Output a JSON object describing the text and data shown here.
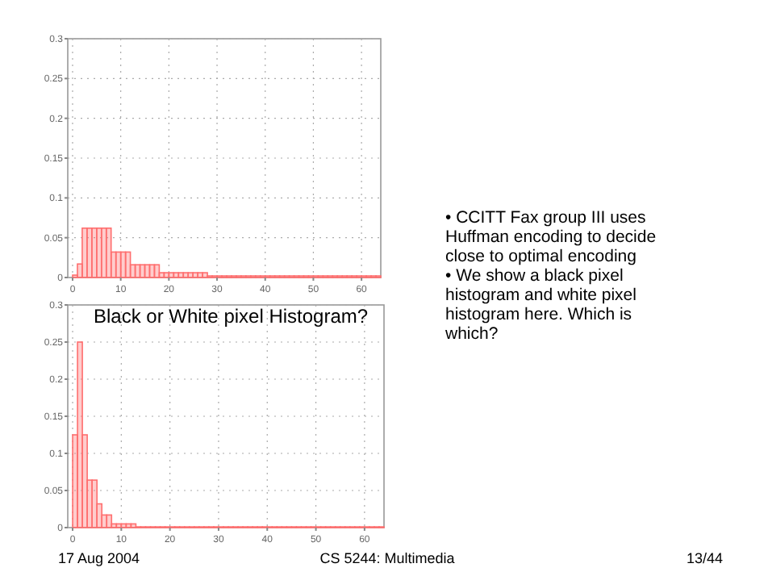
{
  "chart_data": [
    {
      "type": "histogram",
      "bins": [
        0,
        1,
        2,
        3,
        4,
        5,
        6,
        7,
        8,
        9,
        10,
        11,
        12,
        13,
        14,
        15,
        16,
        17,
        18,
        19,
        20,
        21,
        22,
        23,
        24,
        25,
        26,
        27,
        28,
        29,
        30,
        31,
        32,
        33,
        34,
        35,
        36,
        37,
        38,
        39,
        40,
        41,
        42,
        43,
        44,
        45,
        46,
        47,
        48,
        49,
        50,
        51,
        52,
        53,
        54,
        55,
        56,
        57,
        58,
        59,
        60,
        61,
        62,
        63,
        64
      ],
      "values": [
        0.003,
        0.017,
        0.062,
        0.062,
        0.062,
        0.062,
        0.062,
        0.062,
        0.032,
        0.032,
        0.032,
        0.032,
        0.016,
        0.016,
        0.016,
        0.016,
        0.016,
        0.016,
        0.006,
        0.006,
        0.006,
        0.006,
        0.006,
        0.006,
        0.006,
        0.006,
        0.006,
        0.006,
        0.002,
        0.002,
        0.002,
        0.002,
        0.002,
        0.002,
        0.002,
        0.002,
        0.002,
        0.002,
        0.002,
        0.002,
        0.002,
        0.002,
        0.002,
        0.002,
        0.002,
        0.002,
        0.002,
        0.002,
        0.002,
        0.002,
        0.002,
        0.002,
        0.002,
        0.002,
        0.002,
        0.002,
        0.002,
        0.002,
        0.002,
        0.002,
        0.002,
        0.002,
        0.002,
        0.002
      ],
      "color": "#ff6f6f",
      "xlim": [
        -1,
        64
      ],
      "ylim": [
        0,
        0.3
      ],
      "xticks": [
        0,
        10,
        20,
        30,
        40,
        50,
        60
      ],
      "yticks": [
        0,
        0.05,
        0.1,
        0.15,
        0.2,
        0.25,
        0.3
      ],
      "grid": true,
      "line_style": "dotted"
    },
    {
      "type": "histogram",
      "title": "Black or White pixel Histogram?",
      "bins": [
        0,
        1,
        2,
        3,
        4,
        5,
        6,
        7,
        8,
        9,
        10,
        11,
        12,
        13,
        14,
        15,
        16,
        17,
        18,
        19,
        20,
        21,
        22,
        23,
        24,
        25,
        26,
        27,
        28,
        29,
        30,
        31,
        32,
        33,
        34,
        35,
        36,
        37,
        38,
        39,
        40,
        41,
        42,
        43,
        44,
        45,
        46,
        47,
        48,
        49,
        50,
        51,
        52,
        53,
        54,
        55,
        56,
        57,
        58,
        59,
        60,
        61,
        62,
        63,
        64
      ],
      "values": [
        0.125,
        0.25,
        0.125,
        0.064,
        0.064,
        0.032,
        0.017,
        0.017,
        0.005,
        0.005,
        0.005,
        0.005,
        0.005,
        0.001,
        0.001,
        0.001,
        0.001,
        0.001,
        0.001,
        0.001,
        0.001,
        0.001,
        0.001,
        0.001,
        0.001,
        0.001,
        0.001,
        0.001,
        0.001,
        0.001,
        0.001,
        0.001,
        0.001,
        0.001,
        0.001,
        0.001,
        0.001,
        0.001,
        0.001,
        0.001,
        0.001,
        0.001,
        0.001,
        0.001,
        0.001,
        0.001,
        0.001,
        0.001,
        0.001,
        0.001,
        0.001,
        0.001,
        0.001,
        0.001,
        0.001,
        0.001,
        0.001,
        0.001,
        0.001,
        0.001,
        0.001,
        0.001,
        0.001,
        0.001
      ],
      "color": "#ff6f6f",
      "xlim": [
        -1,
        64
      ],
      "ylim": [
        0,
        0.3
      ],
      "xticks": [
        0,
        10,
        20,
        30,
        40,
        50,
        60
      ],
      "yticks": [
        0,
        0.05,
        0.1,
        0.15,
        0.2,
        0.25,
        0.3
      ],
      "grid": true,
      "line_style": "dotted"
    },
    {
      "type": "other",
      "annotations": [
        "• CCITT Fax group III uses Huffman encoding to decide close to optimal encoding",
        "• We show a black pixel histogram and white pixel histogram here.  Which is which?",
        "17 Aug 2004",
        "CS 5244: Multimedia",
        "13/44"
      ]
    }
  ]
}
